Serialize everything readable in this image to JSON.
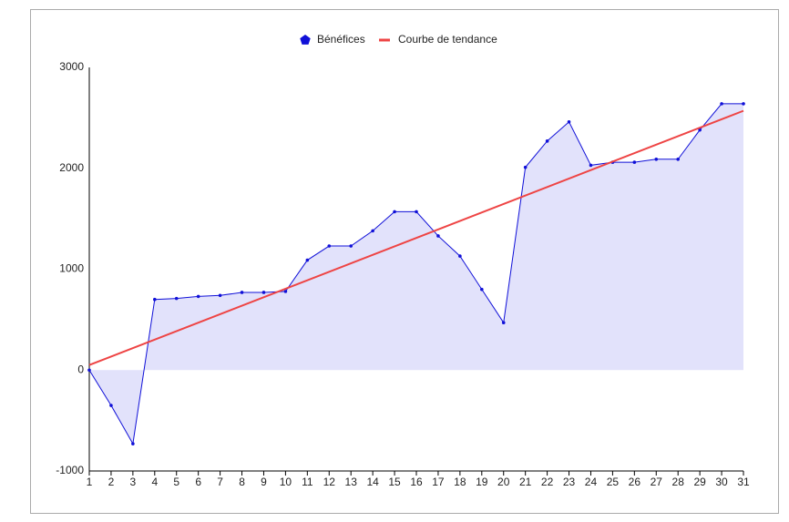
{
  "chart_data": {
    "type": "area",
    "x": [
      1,
      2,
      3,
      4,
      5,
      6,
      7,
      8,
      9,
      10,
      11,
      12,
      13,
      14,
      15,
      16,
      17,
      18,
      19,
      20,
      21,
      22,
      23,
      24,
      25,
      26,
      27,
      28,
      29,
      30,
      31
    ],
    "series": [
      {
        "name": "Bénéfices",
        "color": "#1010d8",
        "fill": "#e2e2fb",
        "values": [
          0,
          -350,
          -730,
          700,
          710,
          730,
          740,
          770,
          770,
          780,
          1090,
          1230,
          1230,
          1380,
          1570,
          1570,
          1330,
          1130,
          800,
          470,
          2010,
          2270,
          2460,
          2030,
          2060,
          2060,
          2090,
          2090,
          2380,
          2640,
          2640
        ]
      },
      {
        "name": "Courbe de tendance",
        "color": "#ee4444",
        "x": [
          1,
          31
        ],
        "values": [
          50,
          2570
        ]
      }
    ],
    "xlim": [
      1,
      31
    ],
    "xticks": [
      1,
      2,
      3,
      4,
      5,
      6,
      7,
      8,
      9,
      10,
      11,
      12,
      13,
      14,
      15,
      16,
      17,
      18,
      19,
      20,
      21,
      22,
      23,
      24,
      25,
      26,
      27,
      28,
      29,
      30,
      31
    ],
    "ylim": [
      -1000,
      3000
    ],
    "yticks": [
      -1000,
      0,
      1000,
      2000,
      3000
    ]
  }
}
